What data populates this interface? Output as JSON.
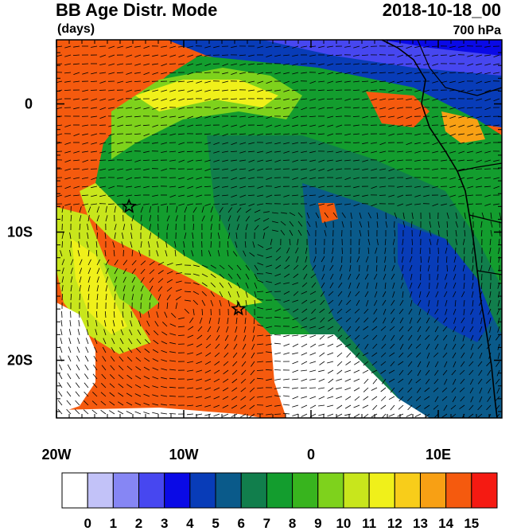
{
  "title": {
    "main": "BB Age Distr. Mode",
    "date": "2018-10-18_00",
    "units": "(days)",
    "level": "700 hPa"
  },
  "map": {
    "lon_range": [
      -20,
      15
    ],
    "lat_range": [
      -24.5,
      5
    ],
    "x_ticks": [
      {
        "value": -20,
        "label": "20W"
      },
      {
        "value": -10,
        "label": "10W"
      },
      {
        "value": 0,
        "label": "0"
      },
      {
        "value": 10,
        "label": "10E"
      }
    ],
    "y_ticks": [
      {
        "value": 0,
        "label": "0"
      },
      {
        "value": -10,
        "label": "10S"
      },
      {
        "value": -20,
        "label": "20S"
      }
    ],
    "markers": [
      {
        "name": "star",
        "lon": -14.3,
        "lat": -8
      },
      {
        "name": "star",
        "lon": -5.7,
        "lat": -16
      }
    ],
    "overlays": [
      "coastline",
      "country-borders",
      "wind-barbs"
    ]
  },
  "colorbar": {
    "labels": [
      "0",
      "1",
      "2",
      "3",
      "4",
      "5",
      "6",
      "7",
      "8",
      "9",
      "10",
      "11",
      "12",
      "13",
      "14",
      "15"
    ],
    "colors": [
      "#ffffff",
      "#c2c2f8",
      "#8686f4",
      "#4747f0",
      "#0a0ae6",
      "#083cb8",
      "#0a5a8a",
      "#117e4c",
      "#139d2e",
      "#38b41e",
      "#7ed21c",
      "#c8e61c",
      "#f0f01a",
      "#f8cd1a",
      "#f8a014",
      "#f55a0e",
      "#f51a12"
    ]
  }
}
